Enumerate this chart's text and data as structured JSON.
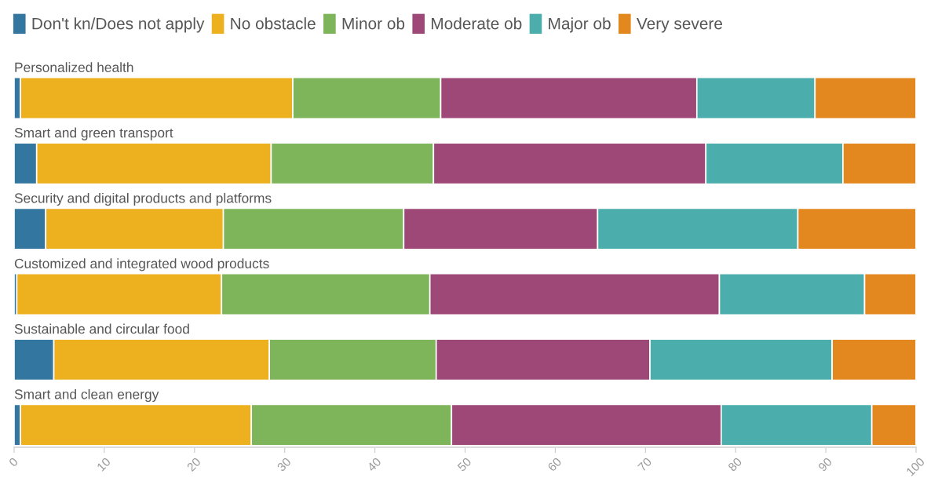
{
  "chart_data": {
    "type": "bar",
    "orientation": "horizontal",
    "stacked": true,
    "legend": "top left",
    "categories": [
      "Personalized health",
      "Smart and green transport",
      "Security and digital products and platforms",
      "Customized and integrated wood products",
      "Sustainable and circular food",
      "Smart and clean energy"
    ],
    "series": [
      {
        "name": "Don't kn/Does not apply",
        "color": "#33769f",
        "values": [
          0.7,
          2.5,
          3.5,
          0.3,
          4.4,
          0.7
        ]
      },
      {
        "name": "No obstacle",
        "color": "#edb120",
        "values": [
          30.2,
          26.0,
          19.7,
          22.7,
          23.9,
          25.6
        ]
      },
      {
        "name": "Minor ob",
        "color": "#7fb55a",
        "values": [
          16.4,
          18.0,
          20.0,
          23.1,
          18.5,
          22.2
        ]
      },
      {
        "name": "Moderate ob",
        "color": "#9e4878",
        "values": [
          28.4,
          30.2,
          21.5,
          32.1,
          23.7,
          29.9
        ]
      },
      {
        "name": "Major ob",
        "color": "#4cadad",
        "values": [
          13.1,
          15.2,
          22.2,
          16.1,
          20.2,
          16.7
        ]
      },
      {
        "name": "Very severe",
        "color": "#e3871f",
        "values": [
          11.2,
          8.1,
          13.1,
          5.7,
          9.3,
          4.9
        ]
      }
    ],
    "xlim": [
      0,
      100
    ],
    "xticks": [
      0,
      10,
      20,
      30,
      40,
      50,
      60,
      70,
      80,
      90,
      100
    ]
  }
}
